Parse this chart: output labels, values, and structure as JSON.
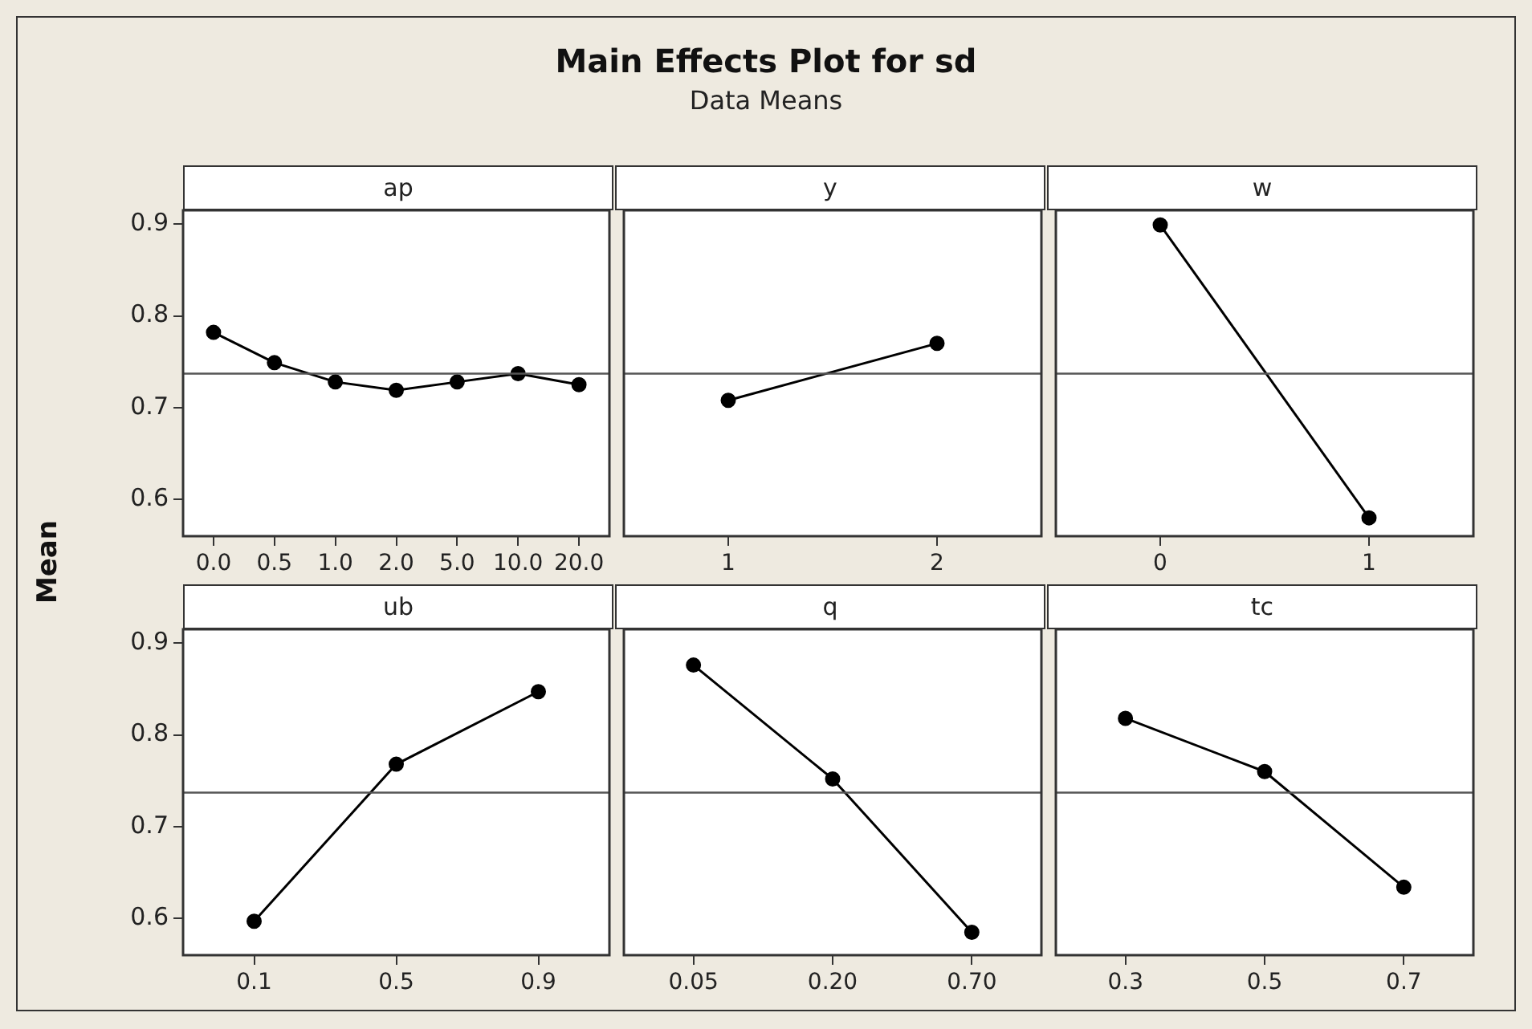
{
  "chart_data": [
    {
      "type": "other",
      "title": "Main Effects Plot for sd",
      "subtitle": "Data Means",
      "ylabel": "Mean"
    },
    {
      "type": "line",
      "title": "ap",
      "categories": [
        "0.0",
        "0.5",
        "1.0",
        "2.0",
        "5.0",
        "10.0",
        "20.0"
      ],
      "values": [
        0.782,
        0.749,
        0.728,
        0.719,
        0.728,
        0.737,
        0.725
      ],
      "color": "#000000",
      "ylim": [
        0.56,
        0.915
      ],
      "yticks": [
        0.6,
        0.7,
        0.8,
        0.9
      ],
      "marker": "circle",
      "ref_lines": [
        {
          "axis": "y",
          "value": 0.737
        }
      ]
    },
    {
      "type": "line",
      "title": "y",
      "categories": [
        "1",
        "2"
      ],
      "values": [
        0.708,
        0.77
      ],
      "color": "#000000",
      "ylim": [
        0.56,
        0.915
      ],
      "tick_labels": "x",
      "marker": "circle",
      "ref_lines": [
        {
          "axis": "y",
          "value": 0.737
        }
      ]
    },
    {
      "type": "line",
      "title": "w",
      "categories": [
        "0",
        "1"
      ],
      "values": [
        0.899,
        0.58
      ],
      "color": "#000000",
      "ylim": [
        0.56,
        0.915
      ],
      "tick_labels": "x",
      "marker": "circle",
      "ref_lines": [
        {
          "axis": "y",
          "value": 0.737
        }
      ]
    },
    {
      "type": "line",
      "title": "ub",
      "categories": [
        "0.1",
        "0.5",
        "0.9"
      ],
      "values": [
        0.597,
        0.768,
        0.847
      ],
      "color": "#000000",
      "ylim": [
        0.56,
        0.915
      ],
      "yticks": [
        0.6,
        0.7,
        0.8,
        0.9
      ],
      "marker": "circle",
      "ref_lines": [
        {
          "axis": "y",
          "value": 0.737
        }
      ]
    },
    {
      "type": "line",
      "title": "q",
      "categories": [
        "0.05",
        "0.20",
        "0.70"
      ],
      "values": [
        0.876,
        0.752,
        0.585
      ],
      "color": "#000000",
      "ylim": [
        0.56,
        0.915
      ],
      "tick_labels": "x",
      "marker": "circle",
      "ref_lines": [
        {
          "axis": "y",
          "value": 0.737
        }
      ]
    },
    {
      "type": "line",
      "title": "tc",
      "categories": [
        "0.3",
        "0.5",
        "0.7"
      ],
      "values": [
        0.818,
        0.76,
        0.634
      ],
      "color": "#000000",
      "ylim": [
        0.56,
        0.915
      ],
      "tick_labels": "x",
      "marker": "circle",
      "ref_lines": [
        {
          "axis": "y",
          "value": 0.737
        }
      ]
    }
  ]
}
